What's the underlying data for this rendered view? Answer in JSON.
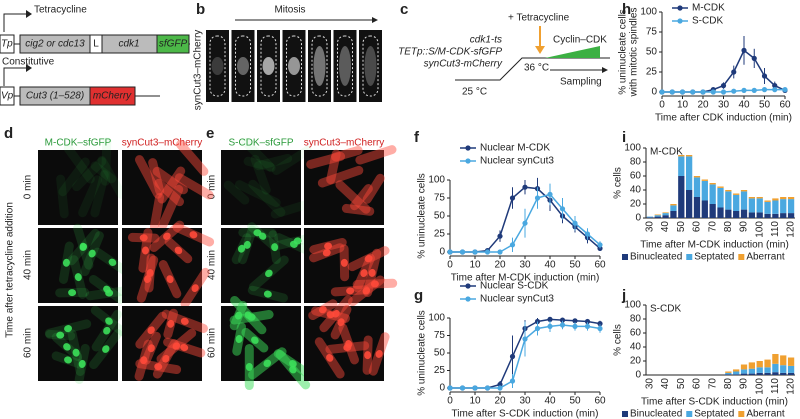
{
  "panel_letters": [
    "a",
    "b",
    "c",
    "d",
    "e",
    "f",
    "g",
    "h",
    "i",
    "j"
  ],
  "construct": {
    "inducible_label": "Tetracycline",
    "promoter1": "Tp",
    "gene1": "cig2 or cdc13",
    "linker": "L",
    "gene2": "cdk1",
    "tag1": "sfGFP",
    "constitutive_label": "Constitutive",
    "promoter2": "Vp",
    "gene3": "Cut3 (1–528)",
    "tag2": "mCherry"
  },
  "mitosis": {
    "label": "Mitosis",
    "row_label": "synCut3–mCherry"
  },
  "scheme": {
    "drug": "+ Tetracycline",
    "strain": [
      "cdk1-ts",
      "TETp::S/M-CDK-sfGFP",
      "synCut3-mCherry"
    ],
    "temp1": "25 °C",
    "temp2": "36 °C",
    "cyclin": "Cyclin–CDK",
    "sampling": "Sampling"
  },
  "micrographs": {
    "side_label": "Time after tetracycline addition",
    "times": [
      "0 min",
      "40 min",
      "60 min"
    ],
    "d_channels": [
      "M-CDK–sfGFP",
      "synCut3–mCherry"
    ],
    "e_channels": [
      "S-CDK–sfGFP",
      "synCut3–mCherry"
    ]
  },
  "chart_data": [
    {
      "type": "line",
      "ylabel": [
        "% uninucleate cells",
        "with mitotic spindles"
      ],
      "xlabel": "Time after CDK induction (min)",
      "x": [
        0,
        5,
        10,
        15,
        20,
        25,
        30,
        35,
        40,
        45,
        50,
        55,
        60
      ],
      "xlim": [
        0,
        60
      ],
      "xticks": [
        0,
        10,
        20,
        30,
        40,
        50,
        60
      ],
      "ylim": [
        0,
        100
      ],
      "yticks": [
        0,
        25,
        50,
        75,
        100
      ],
      "legend": "top",
      "series": [
        {
          "name": "M-CDK",
          "color": "#1f3a7a",
          "values": [
            0,
            0,
            0,
            0,
            0,
            3,
            8,
            25,
            52,
            42,
            20,
            8,
            2
          ],
          "errors": [
            0,
            0,
            0,
            0,
            0,
            2,
            4,
            8,
            18,
            12,
            10,
            5,
            2
          ]
        },
        {
          "name": "S-CDK",
          "color": "#4aa8e0",
          "values": [
            0,
            0,
            0,
            0,
            0,
            0,
            0,
            1,
            2,
            2,
            3,
            3,
            3
          ],
          "errors": [
            0,
            0,
            0,
            0,
            0,
            0,
            0,
            1,
            1,
            1,
            2,
            2,
            2
          ]
        }
      ]
    },
    {
      "type": "line",
      "ylabel": "% uninucleate cells",
      "xlabel": "Time after M-CDK induction (min)",
      "x": [
        0,
        5,
        10,
        15,
        20,
        25,
        30,
        35,
        40,
        45,
        50,
        55,
        60
      ],
      "xlim": [
        0,
        60
      ],
      "xticks": [
        0,
        10,
        20,
        30,
        40,
        50,
        60
      ],
      "ylim": [
        0,
        100
      ],
      "yticks": [
        0,
        25,
        50,
        75,
        100
      ],
      "legend": "top",
      "series": [
        {
          "name": "Nuclear M-CDK",
          "color": "#1f3a7a",
          "values": [
            0,
            0,
            0,
            2,
            22,
            75,
            90,
            88,
            72,
            50,
            35,
            20,
            5
          ],
          "errors": [
            0,
            0,
            0,
            2,
            8,
            15,
            10,
            15,
            15,
            10,
            8,
            8,
            3
          ]
        },
        {
          "name": "Nuclear synCut3",
          "color": "#4aa8e0",
          "values": [
            0,
            0,
            0,
            0,
            0,
            10,
            40,
            75,
            80,
            60,
            40,
            25,
            10
          ],
          "errors": [
            0,
            0,
            0,
            0,
            0,
            10,
            20,
            15,
            15,
            15,
            10,
            8,
            5
          ]
        }
      ]
    },
    {
      "type": "line",
      "ylabel": "% uninucleate cells",
      "xlabel": "Time after S-CDK induction (min)",
      "x": [
        0,
        5,
        10,
        15,
        20,
        25,
        30,
        35,
        40,
        45,
        50,
        55,
        60
      ],
      "xlim": [
        0,
        60
      ],
      "xticks": [
        0,
        10,
        20,
        30,
        40,
        50,
        60
      ],
      "ylim": [
        0,
        100
      ],
      "yticks": [
        0,
        25,
        50,
        75,
        100
      ],
      "legend": "top",
      "series": [
        {
          "name": "Nuclear S-CDK",
          "color": "#1f3a7a",
          "values": [
            0,
            0,
            0,
            0,
            5,
            45,
            85,
            95,
            98,
            97,
            96,
            95,
            92
          ],
          "errors": [
            0,
            0,
            0,
            0,
            5,
            30,
            12,
            5,
            3,
            3,
            3,
            3,
            4
          ]
        },
        {
          "name": "Nuclear synCut3",
          "color": "#4aa8e0",
          "values": [
            0,
            0,
            0,
            0,
            0,
            10,
            70,
            85,
            88,
            90,
            88,
            88,
            85
          ],
          "errors": [
            0,
            0,
            0,
            0,
            0,
            10,
            25,
            10,
            8,
            6,
            6,
            6,
            6
          ]
        }
      ]
    },
    {
      "type": "stacked_bar",
      "title": "M-CDK",
      "ylabel": "% cells",
      "xlabel": "Time after M-CDK induction (min)",
      "categories": [
        30,
        null,
        40,
        null,
        50,
        null,
        60,
        null,
        70,
        null,
        80,
        null,
        90,
        null,
        100,
        null,
        110,
        null,
        120
      ],
      "ylim": [
        0,
        100
      ],
      "yticks": [
        0,
        20,
        40,
        60,
        80,
        100
      ],
      "series": [
        {
          "name": "Binucleated",
          "color": "#1f3a7a",
          "values": [
            1,
            2,
            4,
            10,
            60,
            40,
            30,
            25,
            20,
            15,
            12,
            10,
            12,
            8,
            8,
            6,
            6,
            7,
            7
          ]
        },
        {
          "name": "Septated",
          "color": "#4aa8e0",
          "values": [
            1,
            2,
            3,
            8,
            28,
            48,
            28,
            28,
            28,
            28,
            26,
            23,
            26,
            20,
            20,
            17,
            19,
            20,
            20
          ]
        },
        {
          "name": "Aberrant",
          "color": "#f0a030",
          "values": [
            0,
            1,
            1,
            2,
            2,
            2,
            2,
            2,
            2,
            2,
            2,
            2,
            2,
            2,
            2,
            2,
            3,
            3,
            3
          ]
        }
      ]
    },
    {
      "type": "stacked_bar",
      "title": "S-CDK",
      "ylabel": "% cells",
      "xlabel": "Time after S-CDK induction (min)",
      "categories": [
        30,
        null,
        40,
        null,
        50,
        null,
        60,
        null,
        70,
        null,
        80,
        null,
        90,
        null,
        100,
        null,
        110,
        null,
        120
      ],
      "ylim": [
        0,
        100
      ],
      "yticks": [
        0,
        20,
        40,
        60,
        80,
        100
      ],
      "series": [
        {
          "name": "Binucleated",
          "color": "#1f3a7a",
          "values": [
            0,
            0,
            0,
            0,
            0,
            0,
            0,
            0,
            0,
            0,
            1,
            1,
            2,
            2,
            3,
            3,
            4,
            3,
            3
          ]
        },
        {
          "name": "Septated",
          "color": "#4aa8e0",
          "values": [
            0,
            0,
            0,
            0,
            0,
            0,
            0,
            0,
            0,
            0,
            2,
            4,
            6,
            7,
            8,
            8,
            12,
            11,
            10
          ]
        },
        {
          "name": "Aberrant",
          "color": "#f0a030",
          "values": [
            0,
            0,
            0,
            0,
            0,
            0,
            0,
            0,
            0,
            0,
            2,
            3,
            7,
            9,
            9,
            11,
            14,
            14,
            12
          ]
        }
      ]
    }
  ]
}
